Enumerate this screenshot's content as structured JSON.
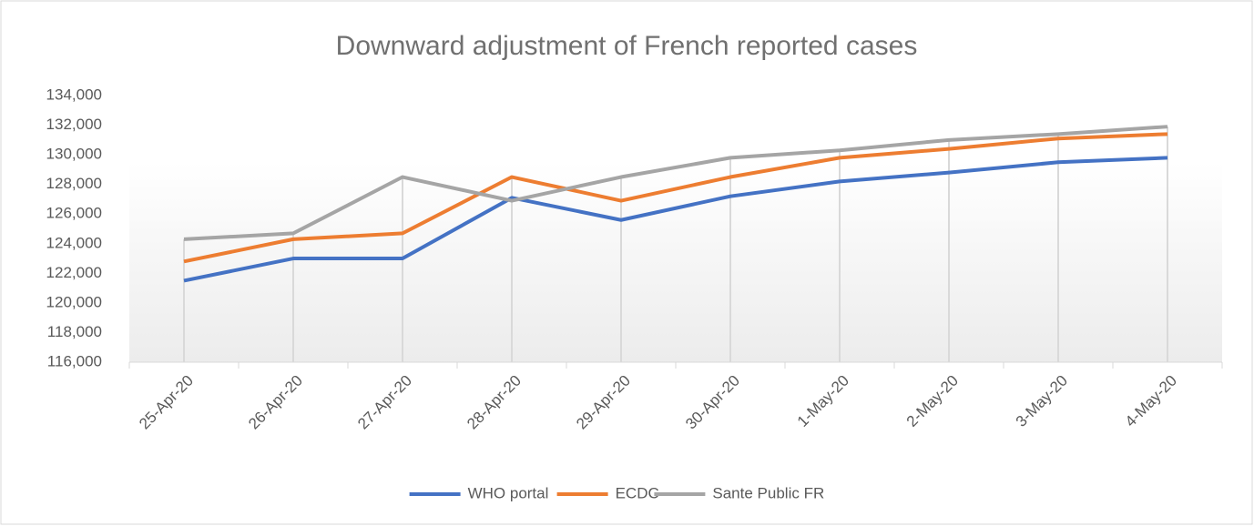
{
  "chart_data": {
    "type": "line",
    "title": "Downward adjustment of French reported cases",
    "categories": [
      "25-Apr-20",
      "26-Apr-20",
      "27-Apr-20",
      "28-Apr-20",
      "29-Apr-20",
      "30-Apr-20",
      "1-May-20",
      "2-May-20",
      "3-May-20",
      "4-May-20"
    ],
    "series": [
      {
        "name": "WHO portal",
        "color": "#4472c4",
        "values": [
          121500,
          123000,
          123000,
          127100,
          125600,
          127200,
          128200,
          128800,
          129500,
          129800
        ]
      },
      {
        "name": "ECDC",
        "color": "#ed7d31",
        "values": [
          122800,
          124300,
          124700,
          128500,
          126900,
          128500,
          129800,
          130400,
          131100,
          131400
        ]
      },
      {
        "name": "Sante Public FR",
        "color": "#a5a5a5",
        "values": [
          124300,
          124700,
          128500,
          126900,
          128500,
          129800,
          130300,
          131000,
          131400,
          131900
        ]
      }
    ],
    "ylim": [
      116000,
      134000
    ],
    "yticks": [
      {
        "value": 116000,
        "label": "116,000"
      },
      {
        "value": 118000,
        "label": "118,000"
      },
      {
        "value": 120000,
        "label": "120,000"
      },
      {
        "value": 122000,
        "label": "122,000"
      },
      {
        "value": 124000,
        "label": "124,000"
      },
      {
        "value": 126000,
        "label": "126,000"
      },
      {
        "value": 128000,
        "label": "128,000"
      },
      {
        "value": 130000,
        "label": "130,000"
      },
      {
        "value": 132000,
        "label": "132,000"
      },
      {
        "value": 134000,
        "label": "134,000"
      }
    ],
    "legend": "bottom",
    "drop_lines": true
  }
}
